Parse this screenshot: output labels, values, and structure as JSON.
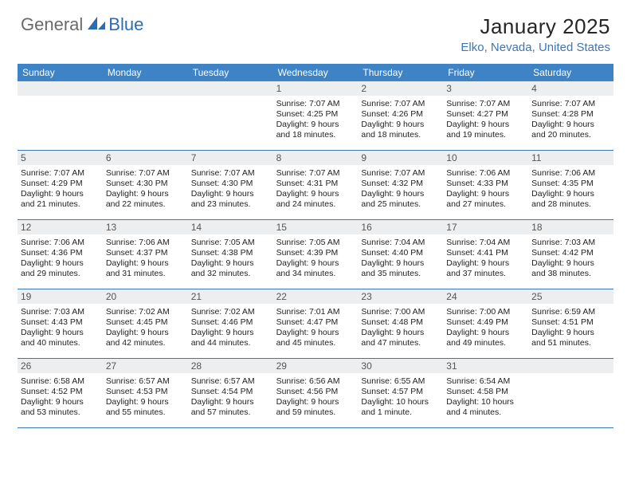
{
  "header": {
    "logo_word1": "General",
    "logo_word2": "Blue",
    "logo_color_gray": "#6a6a6a",
    "logo_color_blue": "#2a6db3",
    "month_title": "January 2025",
    "location": "Elko, Nevada, United States"
  },
  "colors": {
    "header_bar": "#3d83c6",
    "header_text": "#ffffff",
    "daynum_bg": "#eceef0",
    "row_border": "#3d77b5",
    "body_text": "#222222"
  },
  "day_headers": [
    "Sunday",
    "Monday",
    "Tuesday",
    "Wednesday",
    "Thursday",
    "Friday",
    "Saturday"
  ],
  "weeks": [
    [
      {
        "n": "",
        "l1": "",
        "l2": "",
        "l3": "",
        "l4": ""
      },
      {
        "n": "",
        "l1": "",
        "l2": "",
        "l3": "",
        "l4": ""
      },
      {
        "n": "",
        "l1": "",
        "l2": "",
        "l3": "",
        "l4": ""
      },
      {
        "n": "1",
        "l1": "Sunrise: 7:07 AM",
        "l2": "Sunset: 4:25 PM",
        "l3": "Daylight: 9 hours",
        "l4": "and 18 minutes."
      },
      {
        "n": "2",
        "l1": "Sunrise: 7:07 AM",
        "l2": "Sunset: 4:26 PM",
        "l3": "Daylight: 9 hours",
        "l4": "and 18 minutes."
      },
      {
        "n": "3",
        "l1": "Sunrise: 7:07 AM",
        "l2": "Sunset: 4:27 PM",
        "l3": "Daylight: 9 hours",
        "l4": "and 19 minutes."
      },
      {
        "n": "4",
        "l1": "Sunrise: 7:07 AM",
        "l2": "Sunset: 4:28 PM",
        "l3": "Daylight: 9 hours",
        "l4": "and 20 minutes."
      }
    ],
    [
      {
        "n": "5",
        "l1": "Sunrise: 7:07 AM",
        "l2": "Sunset: 4:29 PM",
        "l3": "Daylight: 9 hours",
        "l4": "and 21 minutes."
      },
      {
        "n": "6",
        "l1": "Sunrise: 7:07 AM",
        "l2": "Sunset: 4:30 PM",
        "l3": "Daylight: 9 hours",
        "l4": "and 22 minutes."
      },
      {
        "n": "7",
        "l1": "Sunrise: 7:07 AM",
        "l2": "Sunset: 4:30 PM",
        "l3": "Daylight: 9 hours",
        "l4": "and 23 minutes."
      },
      {
        "n": "8",
        "l1": "Sunrise: 7:07 AM",
        "l2": "Sunset: 4:31 PM",
        "l3": "Daylight: 9 hours",
        "l4": "and 24 minutes."
      },
      {
        "n": "9",
        "l1": "Sunrise: 7:07 AM",
        "l2": "Sunset: 4:32 PM",
        "l3": "Daylight: 9 hours",
        "l4": "and 25 minutes."
      },
      {
        "n": "10",
        "l1": "Sunrise: 7:06 AM",
        "l2": "Sunset: 4:33 PM",
        "l3": "Daylight: 9 hours",
        "l4": "and 27 minutes."
      },
      {
        "n": "11",
        "l1": "Sunrise: 7:06 AM",
        "l2": "Sunset: 4:35 PM",
        "l3": "Daylight: 9 hours",
        "l4": "and 28 minutes."
      }
    ],
    [
      {
        "n": "12",
        "l1": "Sunrise: 7:06 AM",
        "l2": "Sunset: 4:36 PM",
        "l3": "Daylight: 9 hours",
        "l4": "and 29 minutes."
      },
      {
        "n": "13",
        "l1": "Sunrise: 7:06 AM",
        "l2": "Sunset: 4:37 PM",
        "l3": "Daylight: 9 hours",
        "l4": "and 31 minutes."
      },
      {
        "n": "14",
        "l1": "Sunrise: 7:05 AM",
        "l2": "Sunset: 4:38 PM",
        "l3": "Daylight: 9 hours",
        "l4": "and 32 minutes."
      },
      {
        "n": "15",
        "l1": "Sunrise: 7:05 AM",
        "l2": "Sunset: 4:39 PM",
        "l3": "Daylight: 9 hours",
        "l4": "and 34 minutes."
      },
      {
        "n": "16",
        "l1": "Sunrise: 7:04 AM",
        "l2": "Sunset: 4:40 PM",
        "l3": "Daylight: 9 hours",
        "l4": "and 35 minutes."
      },
      {
        "n": "17",
        "l1": "Sunrise: 7:04 AM",
        "l2": "Sunset: 4:41 PM",
        "l3": "Daylight: 9 hours",
        "l4": "and 37 minutes."
      },
      {
        "n": "18",
        "l1": "Sunrise: 7:03 AM",
        "l2": "Sunset: 4:42 PM",
        "l3": "Daylight: 9 hours",
        "l4": "and 38 minutes."
      }
    ],
    [
      {
        "n": "19",
        "l1": "Sunrise: 7:03 AM",
        "l2": "Sunset: 4:43 PM",
        "l3": "Daylight: 9 hours",
        "l4": "and 40 minutes."
      },
      {
        "n": "20",
        "l1": "Sunrise: 7:02 AM",
        "l2": "Sunset: 4:45 PM",
        "l3": "Daylight: 9 hours",
        "l4": "and 42 minutes."
      },
      {
        "n": "21",
        "l1": "Sunrise: 7:02 AM",
        "l2": "Sunset: 4:46 PM",
        "l3": "Daylight: 9 hours",
        "l4": "and 44 minutes."
      },
      {
        "n": "22",
        "l1": "Sunrise: 7:01 AM",
        "l2": "Sunset: 4:47 PM",
        "l3": "Daylight: 9 hours",
        "l4": "and 45 minutes."
      },
      {
        "n": "23",
        "l1": "Sunrise: 7:00 AM",
        "l2": "Sunset: 4:48 PM",
        "l3": "Daylight: 9 hours",
        "l4": "and 47 minutes."
      },
      {
        "n": "24",
        "l1": "Sunrise: 7:00 AM",
        "l2": "Sunset: 4:49 PM",
        "l3": "Daylight: 9 hours",
        "l4": "and 49 minutes."
      },
      {
        "n": "25",
        "l1": "Sunrise: 6:59 AM",
        "l2": "Sunset: 4:51 PM",
        "l3": "Daylight: 9 hours",
        "l4": "and 51 minutes."
      }
    ],
    [
      {
        "n": "26",
        "l1": "Sunrise: 6:58 AM",
        "l2": "Sunset: 4:52 PM",
        "l3": "Daylight: 9 hours",
        "l4": "and 53 minutes."
      },
      {
        "n": "27",
        "l1": "Sunrise: 6:57 AM",
        "l2": "Sunset: 4:53 PM",
        "l3": "Daylight: 9 hours",
        "l4": "and 55 minutes."
      },
      {
        "n": "28",
        "l1": "Sunrise: 6:57 AM",
        "l2": "Sunset: 4:54 PM",
        "l3": "Daylight: 9 hours",
        "l4": "and 57 minutes."
      },
      {
        "n": "29",
        "l1": "Sunrise: 6:56 AM",
        "l2": "Sunset: 4:56 PM",
        "l3": "Daylight: 9 hours",
        "l4": "and 59 minutes."
      },
      {
        "n": "30",
        "l1": "Sunrise: 6:55 AM",
        "l2": "Sunset: 4:57 PM",
        "l3": "Daylight: 10 hours",
        "l4": "and 1 minute."
      },
      {
        "n": "31",
        "l1": "Sunrise: 6:54 AM",
        "l2": "Sunset: 4:58 PM",
        "l3": "Daylight: 10 hours",
        "l4": "and 4 minutes."
      },
      {
        "n": "",
        "l1": "",
        "l2": "",
        "l3": "",
        "l4": ""
      }
    ]
  ]
}
